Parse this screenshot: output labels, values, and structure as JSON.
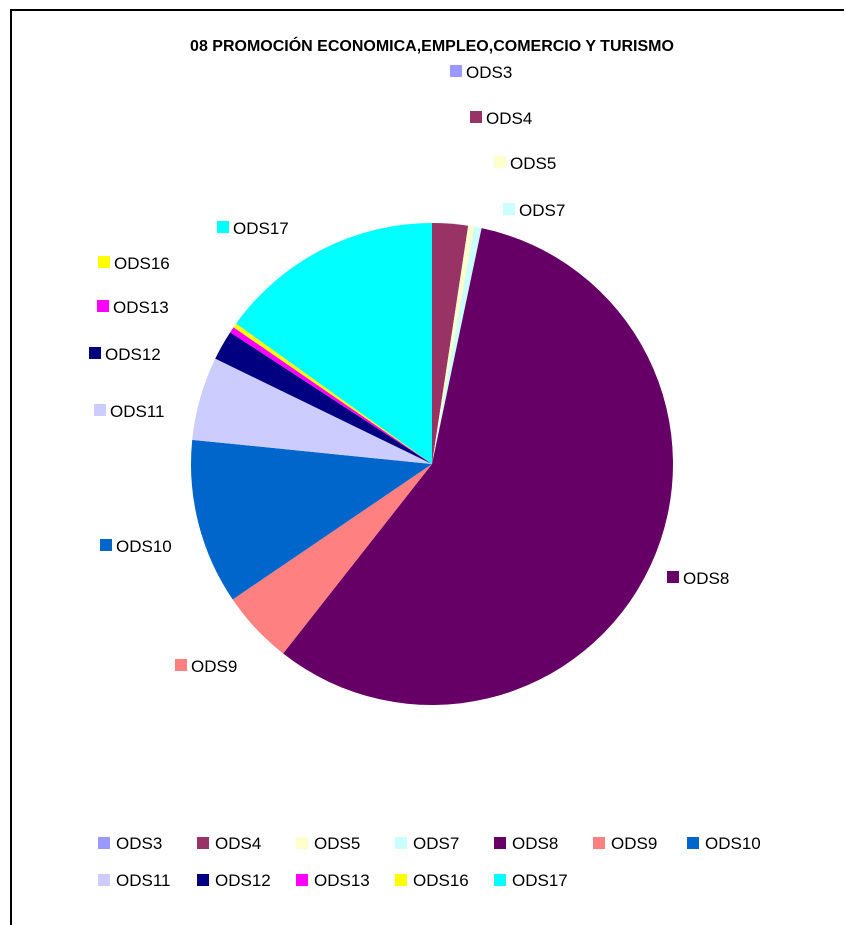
{
  "chart_data": {
    "type": "pie",
    "title": "08 PROMOCIÓN ECONOMICA,EMPLEO,COMERCIO Y TURISMO",
    "series": [
      {
        "name": "ODS3",
        "value": 0.0,
        "color": "#9999FF"
      },
      {
        "name": "ODS4",
        "value": 2.4,
        "color": "#993366"
      },
      {
        "name": "ODS5",
        "value": 0.4,
        "color": "#FFFFCC"
      },
      {
        "name": "ODS7",
        "value": 0.5,
        "color": "#CCFFFF"
      },
      {
        "name": "ODS8",
        "value": 57.3,
        "color": "#660066"
      },
      {
        "name": "ODS9",
        "value": 4.9,
        "color": "#FF8080"
      },
      {
        "name": "ODS10",
        "value": 11.1,
        "color": "#0066CC"
      },
      {
        "name": "ODS11",
        "value": 5.6,
        "color": "#CCCCFF"
      },
      {
        "name": "ODS12",
        "value": 2.0,
        "color": "#000080"
      },
      {
        "name": "ODS13",
        "value": 0.4,
        "color": "#FF00FF"
      },
      {
        "name": "ODS16",
        "value": 0.3,
        "color": "#FFFF00"
      },
      {
        "name": "ODS17",
        "value": 15.1,
        "color": "#00FFFF"
      }
    ],
    "legend_position": "bottom",
    "start_angle_deg": 0,
    "direction": "clockwise"
  }
}
